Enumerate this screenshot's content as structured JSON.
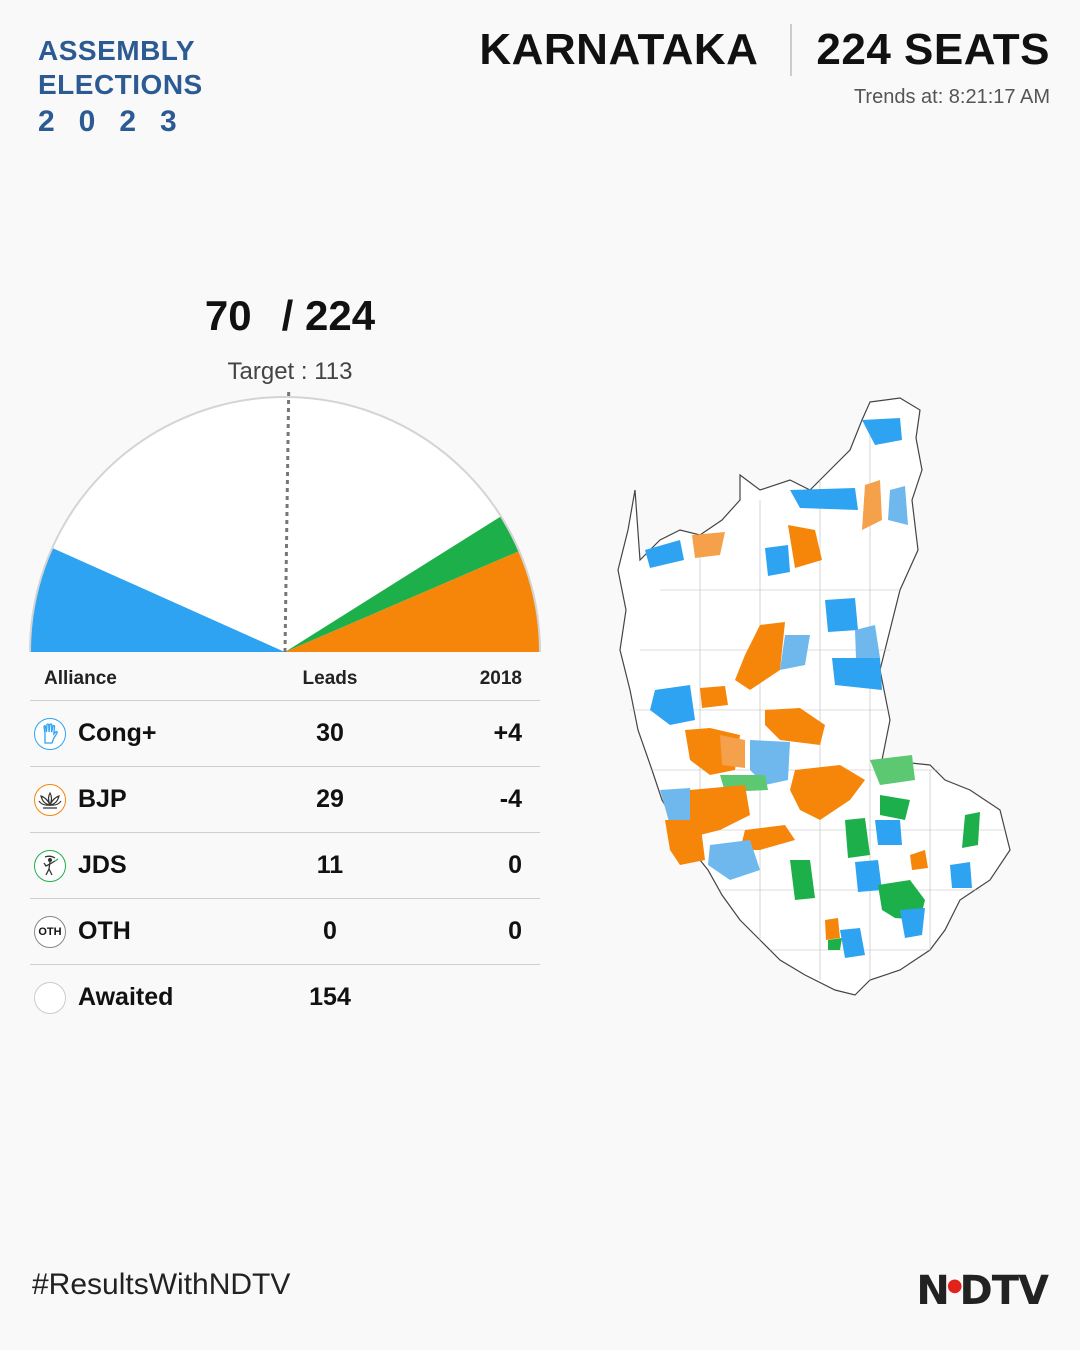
{
  "brand": {
    "line1": "ASSEMBLY",
    "line2": "ELECTIONS",
    "year": "2023"
  },
  "header": {
    "state": "KARNATAKA",
    "seats": "224 SEATS",
    "trends": "Trends at: 8:21:17 AM"
  },
  "tally": {
    "declared": "70",
    "total": "/ 224",
    "target": "Target : 113"
  },
  "colors": {
    "cong": "#2ea3f2",
    "bjp": "#f5860a",
    "jds": "#1db04a",
    "oth": "#9e9e9e",
    "awaited": "#ffffff",
    "brand": "#2c5a93",
    "ndtv_red": "#e0241b"
  },
  "table": {
    "headers": {
      "alliance": "Alliance",
      "leads": "Leads",
      "prev": "2018"
    },
    "rows": [
      {
        "party": "Cong+",
        "leads": "30",
        "change": "+4",
        "icon": "hand-icon"
      },
      {
        "party": "BJP",
        "leads": "29",
        "change": "-4",
        "icon": "lotus-icon"
      },
      {
        "party": "JDS",
        "leads": "11",
        "change": "0",
        "icon": "farmer-icon"
      },
      {
        "party": "OTH",
        "leads": "0",
        "change": "0",
        "icon": "oth-badge",
        "badge": "OTH"
      },
      {
        "party": "Awaited",
        "leads": "154",
        "change": "",
        "icon": "blank-circle"
      }
    ]
  },
  "chart_data": {
    "type": "pie",
    "layout": "semicircle",
    "categories": [
      "Cong+",
      "Awaited",
      "JDS",
      "BJP"
    ],
    "values": [
      30,
      154,
      11,
      29
    ],
    "total": 224,
    "target": 113
  },
  "footer": {
    "hashtag": "#ResultsWithNDTV",
    "logo": "NDTV"
  }
}
